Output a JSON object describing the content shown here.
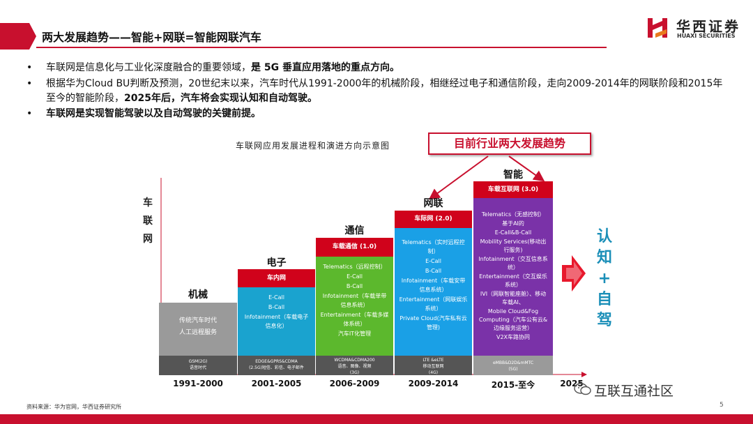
{
  "header": {
    "title": "两大发展趋势——智能+网联=智能网联汽车",
    "logo_cn": "华西证券",
    "logo_en": "HUAXI SECURITIES"
  },
  "bullets": [
    {
      "plain": "车联网是信息化与工业化深度融合的重要领域，",
      "bold": "是 5G 垂直应用落地的重点方向。",
      "plain2": ""
    },
    {
      "plain": "根据华为Cloud BU判断及预测，20世纪末以来，汽车时代从1991-2000年的机械阶段，相继经过电子和通信阶段，走向2009-2014年的网联阶段和2015年至今的智能阶段，",
      "bold": "2025年后，汽车将会实现认知和自动驾驶。",
      "plain2": ""
    },
    {
      "plain": "",
      "bold": "车联网是实现智能驾驶以及自动驾驶的关键前提。",
      "plain2": ""
    }
  ],
  "chart": {
    "caption": "车联网应用发展进程和演进方向示意图",
    "trend_box": "目前行业两大发展趋势",
    "y_label": [
      "车",
      "联",
      "网"
    ],
    "right_label": [
      "认",
      "知",
      "+",
      "自",
      "驾"
    ]
  },
  "stages": [
    {
      "label": "机械",
      "head": "",
      "items": [
        "传统汽车时代",
        "人工远程服务"
      ],
      "foot": [
        "GSM(2G)",
        "语音时代"
      ],
      "year": "1991-2000"
    },
    {
      "label": "电子",
      "head": "车内网",
      "items": [
        "E-Call",
        "B-Call",
        "Infotainment（车载电子信息化）"
      ],
      "foot": [
        "EDGE&GPRS&CDMA",
        "(2.5G)短信、彩信、电子邮件"
      ],
      "year": "2001-2005"
    },
    {
      "label": "通信",
      "head": "车载通信 (1.0)",
      "items": [
        "Telematics（远程控制）",
        "E-Call",
        "B-Call",
        "Infotainment（车载单带信息系统）",
        "Entertainment（车载多媒体系统）",
        "汽车IT化管理"
      ],
      "foot": [
        "WCDMA&CDMA200",
        "语音、图像、视频",
        "(3G)"
      ],
      "year": "2006-2009"
    },
    {
      "label": "网联",
      "head": "车际网 (2.0)",
      "items": [
        "Telematics（实时远程控制）",
        "E-Call",
        "B-Call",
        "Infotainment（车载安带信息系统）",
        "Entertainment（网联娱乐系统）",
        "Private Cloud(汽车私有云管理)"
      ],
      "foot": [
        "LTE &eLTE",
        "移动互联网",
        "(4G)"
      ],
      "year": "2009-2014"
    },
    {
      "label": "智能",
      "head": "车载互联网 (3.0)",
      "items": [
        "Telematics（无感控制）",
        "基于AI的",
        "E-Call&B-Call",
        "Mobility Services(移动出行服务)",
        "Infotainment（交互信息系统）",
        "Entertainment（交互娱乐系统）",
        "IVI（网联智能座舱）、移动车载AI、",
        "Mobile Cloud&Fog Computing（汽车公有云&边缘服务运营）",
        "V2X车路协同"
      ],
      "foot": [
        "eMBB&D2D&mMTC",
        "(5G)"
      ],
      "year": "2015-至今"
    }
  ],
  "last_year": "2025",
  "footer": {
    "source": "资料来源：华为官网，华西证券研究所",
    "page": "5",
    "watermark": "互联互通社区"
  },
  "colors": {
    "brand_red": "#c8102e",
    "stage1": "#9a9a9a",
    "stage2": "#1aa3cf",
    "stage3": "#5cb82d",
    "stage4": "#1aa0e6",
    "stage5": "#7a32a8",
    "head_red": "#d0021b"
  }
}
